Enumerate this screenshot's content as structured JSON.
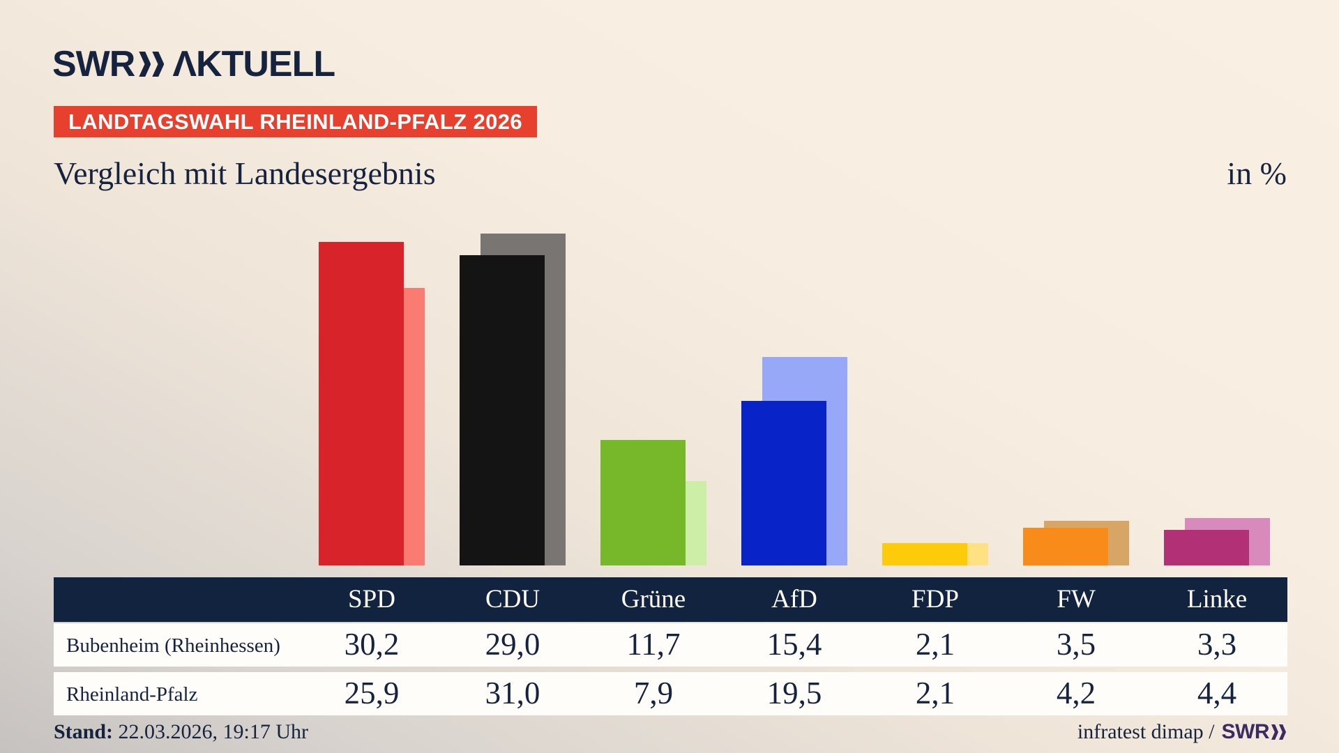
{
  "header": {
    "logo": {
      "swr": "SWR",
      "aktuell": "ΛKTUELL"
    },
    "badge": "LANDTAGSWAHL RHEINLAND-PFALZ 2026",
    "title": "Vergleich mit Landesergebnis",
    "unit_label": "in %"
  },
  "chart_data": {
    "type": "bar",
    "title": "Vergleich mit Landesergebnis",
    "unit": "%",
    "categories": [
      "SPD",
      "CDU",
      "Grüne",
      "AfD",
      "FDP",
      "FW",
      "Linke"
    ],
    "series": [
      {
        "name": "Bubenheim (Rheinhessen)",
        "values": [
          30.2,
          29.0,
          11.7,
          15.4,
          2.1,
          3.5,
          3.3
        ]
      },
      {
        "name": "Rheinland-Pfalz",
        "values": [
          25.9,
          31.0,
          7.9,
          19.5,
          2.1,
          4.2,
          4.4
        ]
      }
    ],
    "colors_front": [
      "#d8232a",
      "#141414",
      "#76b82a",
      "#0823c8",
      "#fecb0a",
      "#f98b1b",
      "#b23076"
    ],
    "colors_back": [
      "#fa7b72",
      "#787573",
      "#cdeea6",
      "#98a8f8",
      "#ffe183",
      "#d7a565",
      "#d98abc"
    ],
    "ylim": [
      0,
      35
    ],
    "grid": false,
    "legend_position": "table-rows"
  },
  "table": {
    "columns": [
      "SPD",
      "CDU",
      "Grüne",
      "AfD",
      "FDP",
      "FW",
      "Linke"
    ],
    "rows": [
      {
        "label": "Bubenheim (Rheinhessen)",
        "values": [
          "30,2",
          "29,0",
          "11,7",
          "15,4",
          "2,1",
          "3,5",
          "3,3"
        ]
      },
      {
        "label": "Rheinland-Pfalz",
        "values": [
          "25,9",
          "31,0",
          "7,9",
          "19,5",
          "2,1",
          "4,2",
          "4,4"
        ]
      }
    ]
  },
  "footer": {
    "stand_label": "Stand:",
    "stand_value": "22.03.2026, 19:17 Uhr",
    "source": "infratest dimap /",
    "source_brand": "SWR"
  },
  "colors": {
    "accent_badge": "#e8402f",
    "navy_text": "#15233e",
    "table_header_bg": "#12233f",
    "brand_footer": "#3b2b63"
  }
}
